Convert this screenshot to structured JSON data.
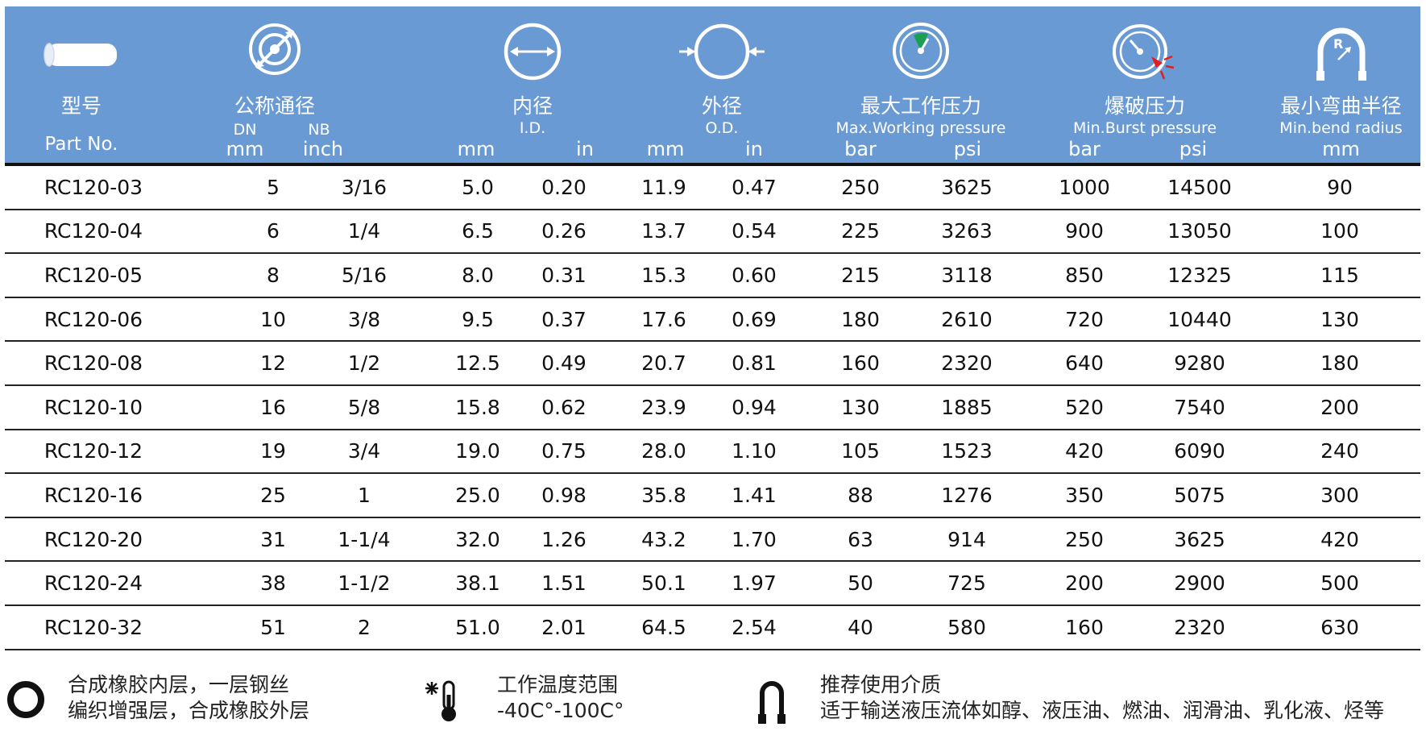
{
  "columns": {
    "part": {
      "title_zh": "型号",
      "title_en": "Part No."
    },
    "nominal": {
      "title_zh": "公称通径",
      "dn_label": "DN",
      "nb_label": "NB",
      "dn_unit": "mm",
      "nb_unit": "inch"
    },
    "inner": {
      "title_zh": "内径",
      "title_en": "I.D.",
      "unit_mm": "mm",
      "unit_in": "in"
    },
    "outer": {
      "title_zh": "外径",
      "title_en": "O.D.",
      "unit_mm": "mm",
      "unit_in": "in"
    },
    "working": {
      "title_zh": "最大工作压力",
      "title_en": "Max.Working pressure",
      "unit_bar": "bar",
      "unit_psi": "psi"
    },
    "burst": {
      "title_zh": "爆破压力",
      "title_en": "Min.Burst pressure",
      "unit_bar": "bar",
      "unit_psi": "psi"
    },
    "bend": {
      "title_zh": "最小弯曲半径",
      "title_en": "Min.bend radius",
      "unit_mm": "mm"
    }
  },
  "rows": [
    [
      "RC120-03",
      "5",
      "3/16",
      "5.0",
      "0.20",
      "11.9",
      "0.47",
      "250",
      "3625",
      "1000",
      "14500",
      "90"
    ],
    [
      "RC120-04",
      "6",
      "1/4",
      "6.5",
      "0.26",
      "13.7",
      "0.54",
      "225",
      "3263",
      "900",
      "13050",
      "100"
    ],
    [
      "RC120-05",
      "8",
      "5/16",
      "8.0",
      "0.31",
      "15.3",
      "0.60",
      "215",
      "3118",
      "850",
      "12325",
      "115"
    ],
    [
      "RC120-06",
      "10",
      "3/8",
      "9.5",
      "0.37",
      "17.6",
      "0.69",
      "180",
      "2610",
      "720",
      "10440",
      "130"
    ],
    [
      "RC120-08",
      "12",
      "1/2",
      "12.5",
      "0.49",
      "20.7",
      "0.81",
      "160",
      "2320",
      "640",
      "9280",
      "180"
    ],
    [
      "RC120-10",
      "16",
      "5/8",
      "15.8",
      "0.62",
      "23.9",
      "0.94",
      "130",
      "1885",
      "520",
      "7540",
      "200"
    ],
    [
      "RC120-12",
      "19",
      "3/4",
      "19.0",
      "0.75",
      "28.0",
      "1.10",
      "105",
      "1523",
      "420",
      "6090",
      "240"
    ],
    [
      "RC120-16",
      "25",
      "1",
      "25.0",
      "0.98",
      "35.8",
      "1.41",
      "88",
      "1276",
      "350",
      "5075",
      "300"
    ],
    [
      "RC120-20",
      "31",
      "1-1/4",
      "32.0",
      "1.26",
      "43.2",
      "1.70",
      "63",
      "914",
      "250",
      "3625",
      "420"
    ],
    [
      "RC120-24",
      "38",
      "1-1/2",
      "38.1",
      "1.51",
      "50.1",
      "1.97",
      "50",
      "725",
      "200",
      "2900",
      "500"
    ],
    [
      "RC120-32",
      "51",
      "2",
      "51.0",
      "2.01",
      "64.5",
      "2.54",
      "40",
      "580",
      "160",
      "2320",
      "630"
    ]
  ],
  "footer": {
    "construction_line1": "合成橡胶内层，一层钢丝",
    "construction_line2": "编织增强层，合成橡胶外层",
    "temperature_label": "工作温度范围",
    "temperature_value": "-40C°-100C°",
    "media_label": "推荐使用介质",
    "media_value": "适于输送液压流体如醇、液压油、燃油、润滑油、乳化液、烃等"
  },
  "icons": {
    "header": [
      "hose-tube-icon",
      "nominal-diameter-icon",
      "inner-diameter-icon",
      "outer-diameter-icon",
      "working-pressure-gauge-icon",
      "burst-pressure-gauge-icon",
      "bend-radius-icon"
    ],
    "footer": [
      "ring-icon",
      "thermometer-icon",
      "u-hose-icon"
    ]
  },
  "colors": {
    "header_bg": "#6a9ad4",
    "gauge_green": "#1aa050",
    "gauge_red": "#e02020"
  }
}
